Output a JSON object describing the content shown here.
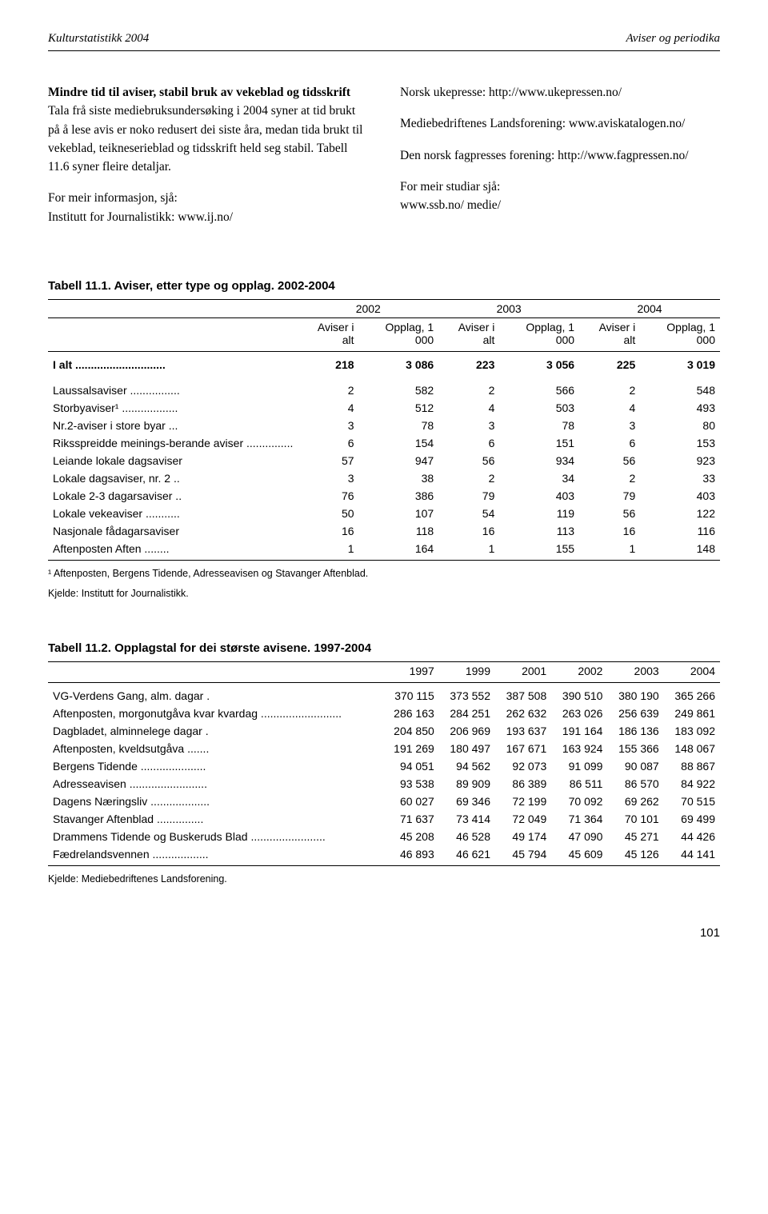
{
  "header": {
    "left": "Kulturstatistikk 2004",
    "right": "Aviser og periodika"
  },
  "leftCol": {
    "title": "Mindre tid til aviser, stabil bruk av vekeblad og tidsskrift",
    "p1": "Tala frå siste mediebruksundersøking i 2004 syner at tid brukt på å lese avis er noko redusert dei siste åra, medan tida brukt til vekeblad, teikneserieblad og tidsskrift held seg stabil. Tabell 11.6 syner fleire detaljar.",
    "p2a": "For meir informasjon, sjå:",
    "p2b": "Institutt for Journalistikk: www.ij.no/"
  },
  "rightCol": {
    "p1": "Norsk ukepresse: http://www.ukepressen.no/",
    "p2": "Mediebedriftenes Landsforening: www.aviskatalogen.no/",
    "p3": "Den norsk fagpresses forening: http://www.fagpressen.no/",
    "p4a": "For meir studiar sjå:",
    "p4b": "www.ssb.no/ medie/"
  },
  "table1": {
    "title": "Tabell 11.1.   Aviser, etter type og opplag. 2002-2004",
    "years": [
      "2002",
      "2003",
      "2004"
    ],
    "subHeaders": [
      "Aviser i alt",
      "Opplag, 1 000",
      "Aviser i alt",
      "Opplag, 1 000",
      "Aviser i alt",
      "Opplag, 1 000"
    ],
    "totalRow": {
      "label": "I alt .............................",
      "v": [
        "218",
        "3 086",
        "223",
        "3 056",
        "225",
        "3 019"
      ]
    },
    "rows": [
      {
        "label": "Laussalsaviser ................",
        "v": [
          "2",
          "582",
          "2",
          "566",
          "2",
          "548"
        ]
      },
      {
        "label": "Storbyaviser¹ ..................",
        "v": [
          "4",
          "512",
          "4",
          "503",
          "4",
          "493"
        ]
      },
      {
        "label": "Nr.2-aviser i store byar ...",
        "v": [
          "3",
          "78",
          "3",
          "78",
          "3",
          "80"
        ]
      },
      {
        "label": "Riksspreidde meinings-berande aviser ...............",
        "v": [
          "6",
          "154",
          "6",
          "151",
          "6",
          "153"
        ]
      },
      {
        "label": "Leiande lokale dagsaviser",
        "v": [
          "57",
          "947",
          "56",
          "934",
          "56",
          "923"
        ]
      },
      {
        "label": "Lokale dagsaviser, nr. 2 ..",
        "v": [
          "3",
          "38",
          "2",
          "34",
          "2",
          "33"
        ]
      },
      {
        "label": "Lokale 2-3 dagarsaviser ..",
        "v": [
          "76",
          "386",
          "79",
          "403",
          "79",
          "403"
        ]
      },
      {
        "label": "Lokale vekeaviser ...........",
        "v": [
          "50",
          "107",
          "54",
          "119",
          "56",
          "122"
        ]
      },
      {
        "label": "Nasjonale fådagarsaviser",
        "v": [
          "16",
          "118",
          "16",
          "113",
          "16",
          "116"
        ]
      },
      {
        "label": "Aftenposten Aften ........",
        "v": [
          "1",
          "164",
          "1",
          "155",
          "1",
          "148"
        ]
      }
    ],
    "footnote1": "¹ Aftenposten, Bergens Tidende, Adresseavisen og Stavanger Aftenblad.",
    "footnote2": "Kjelde: Institutt for Journalistikk."
  },
  "table2": {
    "title": "Tabell 11.2.   Opplagstal for dei største avisene. 1997-2004",
    "years": [
      "1997",
      "1999",
      "2001",
      "2002",
      "2003",
      "2004"
    ],
    "rows": [
      {
        "label": "VG-Verdens Gang, alm. dagar .",
        "v": [
          "370 115",
          "373 552",
          "387 508",
          "390 510",
          "380 190",
          "365 266"
        ]
      },
      {
        "label": "Aftenposten, morgonutgåva kvar kvardag ..........................",
        "v": [
          "286 163",
          "284 251",
          "262 632",
          "263 026",
          "256 639",
          "249 861"
        ]
      },
      {
        "label": "Dagbladet, alminnelege dagar .",
        "v": [
          "204 850",
          "206 969",
          "193 637",
          "191 164",
          "186 136",
          "183 092"
        ]
      },
      {
        "label": "Aftenposten, kveldsutgåva .......",
        "v": [
          "191 269",
          "180 497",
          "167 671",
          "163 924",
          "155 366",
          "148 067"
        ]
      },
      {
        "label": "Bergens Tidende .....................",
        "v": [
          "94 051",
          "94 562",
          "92 073",
          "91 099",
          "90 087",
          "88 867"
        ]
      },
      {
        "label": "Adresseavisen .........................",
        "v": [
          "93 538",
          "89 909",
          "86 389",
          "86 511",
          "86 570",
          "84 922"
        ]
      },
      {
        "label": "Dagens Næringsliv ...................",
        "v": [
          "60 027",
          "69 346",
          "72 199",
          "70 092",
          "69 262",
          "70 515"
        ]
      },
      {
        "label": "Stavanger Aftenblad ...............",
        "v": [
          "71 637",
          "73 414",
          "72 049",
          "71 364",
          "70 101",
          "69 499"
        ]
      },
      {
        "label": "Drammens Tidende og Buskeruds Blad ........................",
        "v": [
          "45 208",
          "46 528",
          "49 174",
          "47 090",
          "45 271",
          "44 426"
        ]
      },
      {
        "label": "Fædrelandsvennen ..................",
        "v": [
          "46 893",
          "46 621",
          "45 794",
          "45 609",
          "45 126",
          "44 141"
        ]
      }
    ],
    "footnote": "Kjelde: Mediebedriftenes Landsforening."
  },
  "pageNum": "101"
}
